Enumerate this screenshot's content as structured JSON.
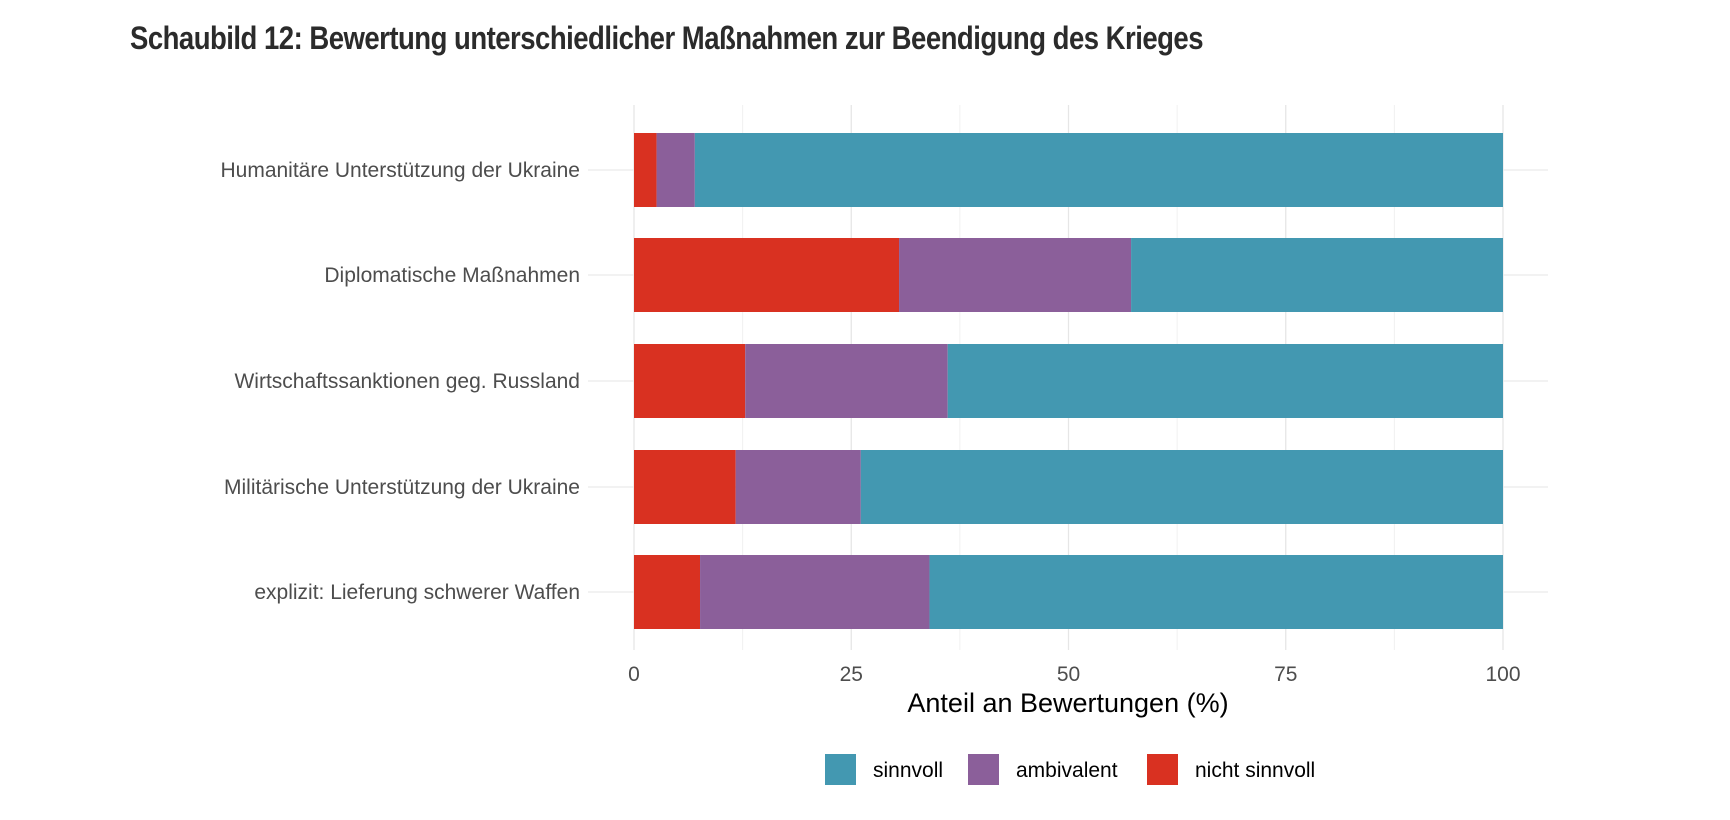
{
  "chart_data": {
    "type": "bar",
    "orientation": "horizontal",
    "stacked": true,
    "title": "Schaubild 12: Bewertung unterschiedlicher Maßnahmen zur Beendigung des Krieges",
    "xlabel": "Anteil an Bewertungen (%)",
    "ylabel": "",
    "xlim": [
      0,
      100
    ],
    "xticks": [
      0,
      25,
      50,
      75,
      100
    ],
    "grid": true,
    "legend_position": "bottom",
    "categories": [
      "Humanitäre Unterstützung der Ukraine",
      "Diplomatische Maßnahmen",
      "Wirtschaftssanktionen geg. Russland",
      "Militärische Unterstützung der Ukraine",
      "explizit: Lieferung schwerer Waffen"
    ],
    "series": [
      {
        "name": "nicht sinnvoll",
        "color": "#d93121",
        "values": [
          2.6,
          30.5,
          12.8,
          11.7,
          7.6
        ]
      },
      {
        "name": "ambivalent",
        "color": "#8b5f9a",
        "values": [
          4.4,
          26.7,
          23.3,
          14.4,
          26.4
        ]
      },
      {
        "name": "sinnvoll",
        "color": "#4398b1",
        "values": [
          93.0,
          42.8,
          63.9,
          73.9,
          66.0
        ]
      }
    ],
    "legend_order": [
      "sinnvoll",
      "ambivalent",
      "nicht sinnvoll"
    ]
  }
}
